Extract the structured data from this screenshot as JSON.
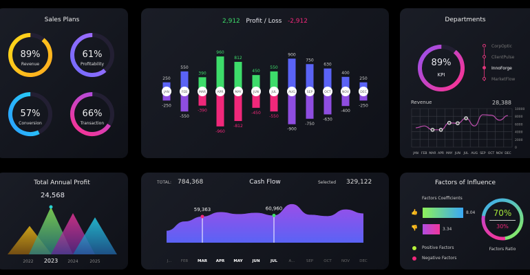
{
  "sales_plans": {
    "title": "Sales Plans",
    "rings": [
      {
        "label": "Revenue",
        "percent": 89,
        "value_text": "89%",
        "colors": [
          "#ffb21e",
          "#ffd21a"
        ]
      },
      {
        "label": "Profitability",
        "percent": 61,
        "value_text": "61%",
        "colors": [
          "#7b6cff",
          "#a46bff"
        ]
      },
      {
        "label": "Conversion",
        "percent": 57,
        "value_text": "57%",
        "colors": [
          "#2aa8ff",
          "#27d7f0"
        ]
      },
      {
        "label": "Transaction",
        "percent": 66,
        "value_text": "66%",
        "colors": [
          "#f0369b",
          "#b04de0"
        ]
      }
    ]
  },
  "profit_loss": {
    "title": "Profit / Loss",
    "total_profit": "2,912",
    "total_loss": "-2,912",
    "chart_data": {
      "type": "bar",
      "categories": [
        "JAN",
        "FEB",
        "MAR",
        "APR",
        "MAY",
        "JUN",
        "JUL",
        "AUG",
        "SEP",
        "OCT",
        "NOV",
        "DEC"
      ],
      "series": [
        {
          "name": "Profit",
          "values": [
            250,
            550,
            390,
            960,
            812,
            450,
            550,
            900,
            750,
            630,
            400,
            250
          ]
        },
        {
          "name": "Loss",
          "values": [
            -250,
            -550,
            -390,
            -960,
            -812,
            -450,
            -550,
            -900,
            -750,
            -630,
            -400,
            -250
          ]
        }
      ],
      "highlighted": [
        "MAR",
        "APR",
        "MAY",
        "JUN",
        "JUL"
      ]
    },
    "colors": {
      "profit": "#5a63f5",
      "loss": "#8e4de0",
      "profit_hl": "#3ddc6a",
      "loss_hl": "#f0287a"
    }
  },
  "departments": {
    "title": "Departments",
    "kpi_percent": 89,
    "kpi_value": "89%",
    "kpi_label": "KPI",
    "items": [
      {
        "name": "CorpOptic",
        "active": false
      },
      {
        "name": "ClientPulse",
        "active": false
      },
      {
        "name": "InnoForge",
        "active": true
      },
      {
        "name": "MarketFlow",
        "active": false
      }
    ],
    "revenue_label": "Revenue",
    "revenue_total": "28,388",
    "chart_data": {
      "type": "line",
      "categories": [
        "JAN",
        "FEB",
        "MAR",
        "APR",
        "MAY",
        "JUN",
        "JUL",
        "AUG",
        "SEP",
        "OCT",
        "NOV",
        "DEC"
      ],
      "values": [
        5000,
        5500,
        4500,
        4500,
        6300,
        6200,
        7500,
        5500,
        8400,
        8300,
        7000,
        8200
      ],
      "y_ticks": [
        "0",
        "2000",
        "4000",
        "6000",
        "8000",
        "10000"
      ],
      "ylim": [
        0,
        10000
      ],
      "grid": true,
      "marked": [
        "MAR",
        "APR",
        "MAY",
        "JUN",
        "JUL"
      ]
    }
  },
  "annual_profit": {
    "title": "Total Annual Profit",
    "value": "24,568",
    "years": [
      "2022",
      "2023",
      "2024",
      "2025"
    ],
    "selected": "2023",
    "chart_data": {
      "type": "area",
      "categories": [
        "2022",
        "2023",
        "2024",
        "2025"
      ],
      "relative_heights": [
        0.6,
        1.0,
        0.87,
        0.78
      ]
    }
  },
  "cash_flow": {
    "title": "Cash Flow",
    "total_label": "TOTAL:",
    "total_value": "784,368",
    "selected_label": "Selected",
    "selected_value": "329,122",
    "markers": [
      {
        "month": "MAR",
        "value": "59,363",
        "color": "#f0287a"
      },
      {
        "month": "JUL",
        "value": "60,960",
        "color": "#3ddc6a"
      }
    ],
    "months": [
      "J...",
      "FEB",
      "MAR",
      "APR",
      "MAY",
      "JUN",
      "JUL",
      "A...",
      "SEP",
      "OCT",
      "NOV",
      "DEC"
    ],
    "selected_months": [
      "MAR",
      "APR",
      "MAY",
      "JUN",
      "JUL"
    ],
    "chart_data": {
      "type": "area",
      "values": [
        38000,
        52000,
        59363,
        66000,
        63000,
        65000,
        60960,
        78000,
        62000,
        60000,
        70000,
        64000
      ]
    }
  },
  "factors": {
    "title": "Factors of Influence",
    "coeff_title": "Factors Coefficients",
    "positive_value": "8.04",
    "negative_value": "3.34",
    "positive_label": "Positive Factors",
    "negative_label": "Negative Factors",
    "ratio_positive": "70%",
    "ratio_negative": "30%",
    "ratio_label": "Factors Ratio",
    "ratio": 0.7
  }
}
